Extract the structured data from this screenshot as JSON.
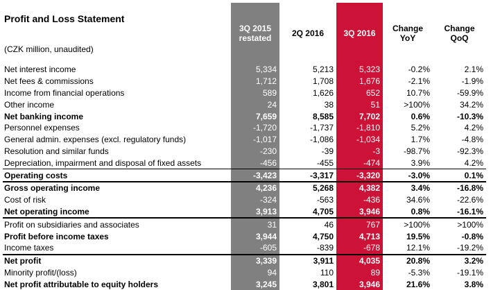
{
  "title": "Profit and Loss Statement",
  "subtitle": "(CZK million, unaudited)",
  "columns": [
    "3Q 2015\nrestated",
    "2Q 2016",
    "3Q 2016",
    "Change\nYoY",
    "Change\nQoQ"
  ],
  "rows": [
    {
      "label": "Net interest income",
      "cells": [
        "5,334",
        "5,213",
        "5,323",
        "-0.2%",
        "2.1%"
      ]
    },
    {
      "label": "Net fees & commissions",
      "cells": [
        "1,712",
        "1,708",
        "1,676",
        "-2.1%",
        "-1.9%"
      ]
    },
    {
      "label": "Income from financial operations",
      "cells": [
        "589",
        "1,626",
        "652",
        "10.7%",
        "-59.9%"
      ]
    },
    {
      "label": "Other income",
      "cells": [
        "24",
        "38",
        "51",
        ">100%",
        "34.2%"
      ]
    },
    {
      "label": "Net banking income",
      "bold": true,
      "cells": [
        "7,659",
        "8,585",
        "7,702",
        "0.6%",
        "-10.3%"
      ]
    },
    {
      "label": "Personnel expenses",
      "cells": [
        "-1,720",
        "-1,737",
        "-1,810",
        "5.2%",
        "4.2%"
      ]
    },
    {
      "label": "General admin. expenses (excl. regulatory funds)",
      "cells": [
        "-1,017",
        "-1,086",
        "-1,034",
        "1.7%",
        "-4.8%"
      ]
    },
    {
      "label": "Resolution and similar funds",
      "cells": [
        "-230",
        "-39",
        "-3",
        "-98.7%",
        "-92.3%"
      ]
    },
    {
      "label": "Depreciation, impairment and disposal of fixed assets",
      "cells": [
        "-456",
        "-455",
        "-474",
        "3.9%",
        "4.2%"
      ]
    },
    {
      "label": "Operating costs",
      "bold": true,
      "cells": [
        "-3,423",
        "-3,317",
        "-3,320",
        "-3.0%",
        "0.1%"
      ]
    },
    {
      "label": "Gross operating income",
      "bold": true,
      "cells": [
        "4,236",
        "5,268",
        "4,382",
        "3.4%",
        "-16.8%"
      ]
    },
    {
      "label": "Cost of risk",
      "cells": [
        "-324",
        "-563",
        "-436",
        "34.6%",
        "-22.6%"
      ]
    },
    {
      "label": "Net operating income",
      "bold": true,
      "cells": [
        "3,913",
        "4,705",
        "3,946",
        "0.8%",
        "-16.1%"
      ]
    },
    {
      "label": "Profit on subsidiaries and associates",
      "cells": [
        "31",
        "46",
        "767",
        ">100%",
        ">100%"
      ]
    },
    {
      "label": "Profit before income taxes",
      "bold": true,
      "cells": [
        "3,944",
        "4,750",
        "4,713",
        "19.5%",
        "-0.8%"
      ]
    },
    {
      "label": "Income taxes",
      "cells": [
        "-605",
        "-839",
        "-678",
        "12.1%",
        "-19.2%"
      ]
    },
    {
      "label": "Net profit",
      "bold": true,
      "cells": [
        "3,339",
        "3,911",
        "4,035",
        "20.8%",
        "3.2%"
      ]
    },
    {
      "label": "Minority profit/(loss)",
      "cells": [
        "94",
        "110",
        "89",
        "-5.3%",
        "-19.1%"
      ]
    },
    {
      "label": "Net profit attributable to equity holders",
      "bold": true,
      "cells": [
        "3,245",
        "3,801",
        "3,946",
        "21.6%",
        "3.8%"
      ]
    }
  ]
}
